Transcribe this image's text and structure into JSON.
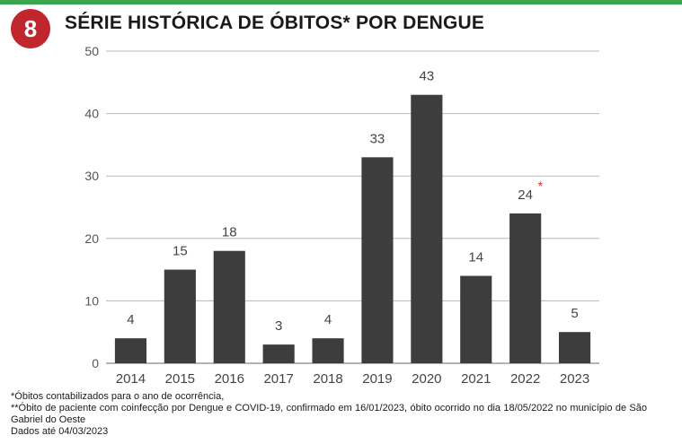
{
  "header": {
    "badge_number": "8",
    "title": "SÉRIE HISTÓRICA DE ÓBITOS* POR DENGUE"
  },
  "chart_data": {
    "type": "bar",
    "title": "SÉRIE HISTÓRICA DE ÓBITOS* POR DENGUE",
    "categories": [
      "2014",
      "2015",
      "2016",
      "2017",
      "2018",
      "2019",
      "2020",
      "2021",
      "2022",
      "2023"
    ],
    "values": [
      4,
      15,
      18,
      3,
      4,
      33,
      43,
      14,
      24,
      5
    ],
    "data_labels": [
      "4",
      "15",
      "18",
      "3",
      "4",
      "33",
      "43",
      "14",
      "24",
      "5"
    ],
    "annotations": [
      {
        "category": "2022",
        "mark": "*",
        "color": "#d32f2f"
      }
    ],
    "ylim": [
      0,
      50
    ],
    "yticks": [
      0,
      10,
      20,
      30,
      40,
      50
    ],
    "grid": true,
    "bar_color": "#3d3d3d",
    "xlabel": "",
    "ylabel": ""
  },
  "footnotes": {
    "note1": "*Óbitos contabilizados para o ano de ocorrência,",
    "note2": "**Óbito de paciente com coinfecção por Dengue e COVID-19, confirmado em 16/01/2023, óbito ocorrido no dia 18/05/2022 no município de São Gabriel do Oeste",
    "note3": "Dados até 04/03/2023"
  },
  "colors": {
    "accent_green": "#3aa64b",
    "badge_red": "#c0262d",
    "bar": "#3d3d3d",
    "grid": "#b8b8b8"
  }
}
